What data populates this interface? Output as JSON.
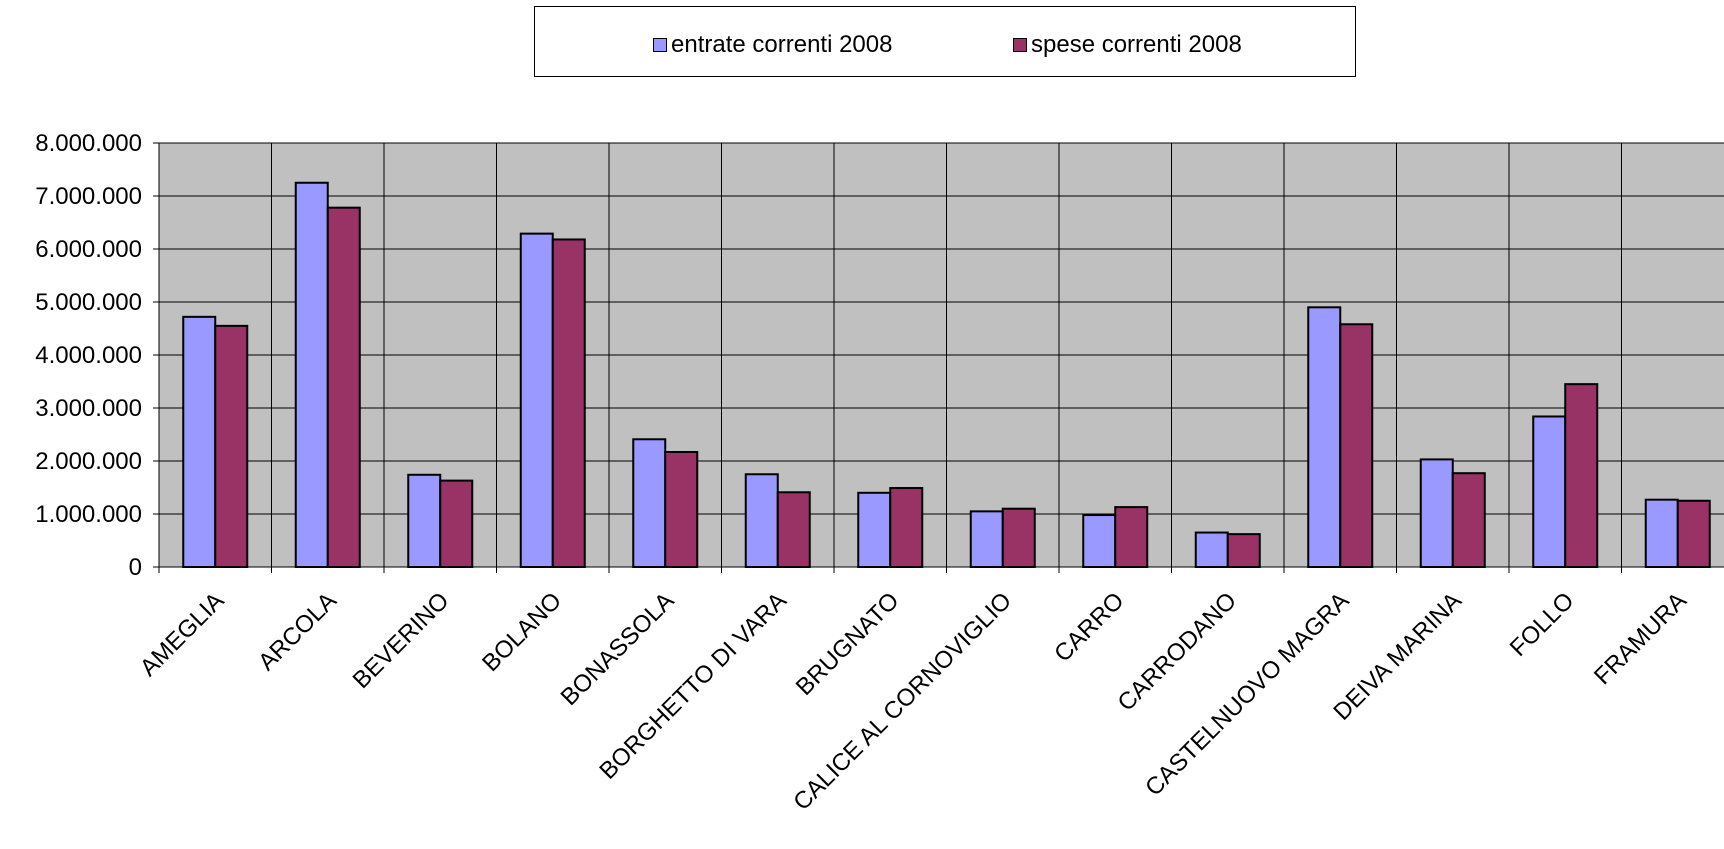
{
  "chart_data": {
    "type": "bar",
    "title": "",
    "xlabel": "",
    "ylabel": "",
    "ylim": [
      0,
      8000000
    ],
    "yticks": [
      0,
      1000000,
      2000000,
      3000000,
      4000000,
      5000000,
      6000000,
      7000000,
      8000000
    ],
    "ytick_labels": [
      "0",
      "1.000.000",
      "2.000.000",
      "3.000.000",
      "4.000.000",
      "5.000.000",
      "6.000.000",
      "7.000.000",
      "8.000.000"
    ],
    "grid": true,
    "legend_position": "top",
    "categories": [
      "AMEGLIA",
      "ARCOLA",
      "BEVERINO",
      "BOLANO",
      "BONASSOLA",
      "BORGHETTO DI VARA",
      "BRUGNATO",
      "CALICE  AL CORNOVIGLIO",
      "CARRO",
      "CARRODANO",
      "CASTELNUOVO MAGRA",
      "DEIVA MARINA",
      "FOLLO",
      "FRAMURA"
    ],
    "series": [
      {
        "name": "entrate correnti 2008",
        "color": "#9999ff",
        "values": [
          4720000,
          7250000,
          1740000,
          6290000,
          2410000,
          1750000,
          1400000,
          1050000,
          980000,
          650000,
          4900000,
          2030000,
          2840000,
          1270000
        ]
      },
      {
        "name": "spese correnti 2008",
        "color": "#993366",
        "values": [
          4550000,
          6780000,
          1630000,
          6180000,
          2170000,
          1410000,
          1490000,
          1100000,
          1130000,
          620000,
          4580000,
          1770000,
          3450000,
          1250000
        ]
      }
    ],
    "plot_background": "#c0c0c0"
  }
}
